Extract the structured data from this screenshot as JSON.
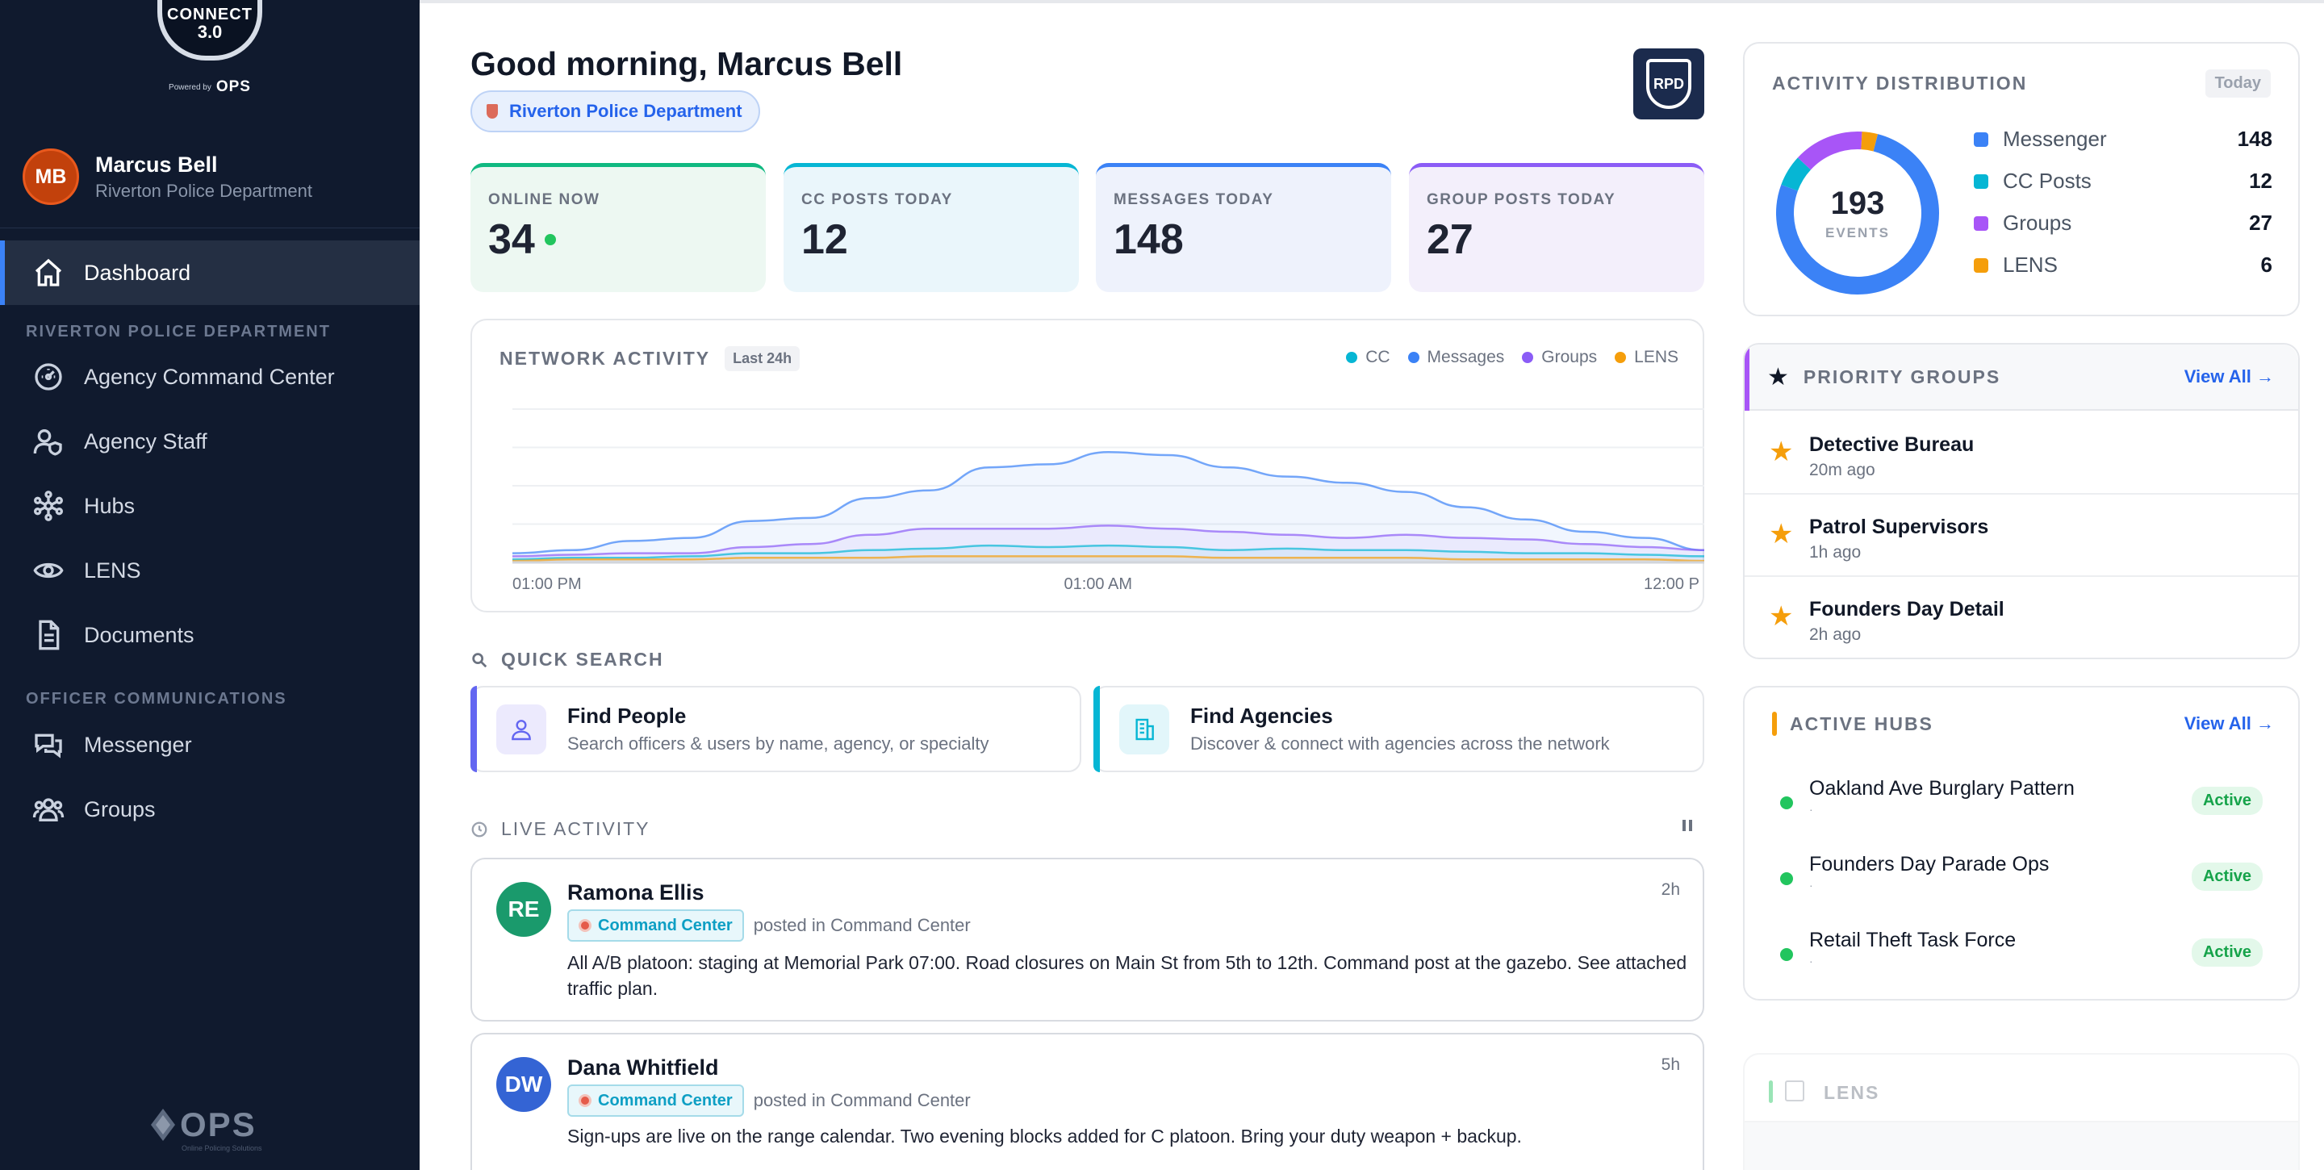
{
  "brand": {
    "logo_line1": "CONNECT",
    "logo_line2": "3.0",
    "powered_by": "Powered by",
    "ops": "OPS",
    "footer_ops": "OPS",
    "footer_tagline": "Online Policing Solutions"
  },
  "user": {
    "initials": "MB",
    "name": "Marcus Bell",
    "agency": "Riverton Police Department"
  },
  "nav": {
    "dashboard": "Dashboard",
    "section_agency": "RIVERTON POLICE DEPARTMENT",
    "agency_items": [
      {
        "label": "Agency Command Center",
        "icon": "gauge-icon"
      },
      {
        "label": "Agency Staff",
        "icon": "user-shield-icon"
      },
      {
        "label": "Hubs",
        "icon": "hub-network-icon"
      },
      {
        "label": "LENS",
        "icon": "eye-icon"
      },
      {
        "label": "Documents",
        "icon": "document-icon"
      }
    ],
    "section_comms": "OFFICER COMMUNICATIONS",
    "comms_items": [
      {
        "label": "Messenger",
        "icon": "chat-bubbles-icon"
      },
      {
        "label": "Groups",
        "icon": "users-icon"
      }
    ]
  },
  "header": {
    "greeting": "Good morning, Marcus Bell",
    "agency_pill": "Riverton Police Department",
    "agency_logo_text": "RPD"
  },
  "stats": [
    {
      "label": "ONLINE NOW",
      "value": "34",
      "color": "#10b981",
      "bg": "#edf8f2"
    },
    {
      "label": "CC POSTS TODAY",
      "value": "12",
      "color": "#06b6d4",
      "bg": "#eaf6fb"
    },
    {
      "label": "MESSAGES TODAY",
      "value": "148",
      "color": "#3b82f6",
      "bg": "#eef2fc"
    },
    {
      "label": "GROUP POSTS TODAY",
      "value": "27",
      "color": "#8b5cf6",
      "bg": "#f3effb"
    }
  ],
  "network": {
    "title": "NETWORK ACTIVITY",
    "range": "Last 24h",
    "legend": [
      {
        "name": "CC",
        "color": "#06b6d4"
      },
      {
        "name": "Messages",
        "color": "#3b82f6"
      },
      {
        "name": "Groups",
        "color": "#8b5cf6"
      },
      {
        "name": "LENS",
        "color": "#f59e0b"
      }
    ],
    "x_ticks": [
      "01:00 PM",
      "01:00 AM",
      "12:00 P"
    ]
  },
  "chart_data": {
    "type": "area",
    "title": "NETWORK ACTIVITY",
    "x_ticks": [
      "01:00 PM",
      "01:00 AM",
      "12:00 P"
    ],
    "ylim": [
      0,
      100
    ],
    "grid": true,
    "legend_position": "top-right",
    "series": [
      {
        "name": "Messages",
        "color": "#3b82f6",
        "values": [
          6,
          8,
          14,
          16,
          27,
          29,
          42,
          47,
          62,
          64,
          72,
          70,
          62,
          56,
          52,
          46,
          36,
          28,
          20,
          16,
          8
        ]
      },
      {
        "name": "Groups",
        "color": "#8b5cf6",
        "values": [
          4,
          5,
          6,
          6,
          10,
          12,
          18,
          22,
          22,
          22,
          24,
          22,
          20,
          18,
          16,
          18,
          16,
          15,
          12,
          10,
          8
        ]
      },
      {
        "name": "CC",
        "color": "#06b6d4",
        "values": [
          2,
          3,
          3,
          4,
          6,
          6,
          8,
          9,
          11,
          10,
          11,
          10,
          8,
          9,
          8,
          8,
          7,
          6,
          6,
          5,
          4
        ]
      },
      {
        "name": "LENS",
        "color": "#f59e0b",
        "values": [
          1,
          2,
          2,
          2,
          3,
          3,
          3,
          4,
          4,
          4,
          4,
          4,
          3,
          3,
          3,
          3,
          2,
          2,
          2,
          2,
          1
        ]
      }
    ]
  },
  "quick_search": {
    "title": "QUICK SEARCH",
    "people": {
      "title": "Find People",
      "sub": "Search officers & users by name, agency, or specialty"
    },
    "agencies": {
      "title": "Find Agencies",
      "sub": "Discover & connect with agencies across the network"
    }
  },
  "live": {
    "title": "LIVE ACTIVITY",
    "items": [
      {
        "initials": "RE",
        "name": "Ramona Ellis",
        "time": "2h",
        "tag": "Command Center",
        "posted_in": "posted in Command Center",
        "text": "All A/B platoon: staging at Memorial Park 07:00. Road closures on Main St from 5th to 12th. Command post at the gazebo. See attached traffic plan.",
        "color": "#1a9a6c"
      },
      {
        "initials": "DW",
        "name": "Dana Whitfield",
        "time": "5h",
        "tag": "Command Center",
        "posted_in": "posted in Command Center",
        "text": "Sign-ups are live on the range calendar. Two evening blocks added for C platoon. Bring your duty weapon + backup.",
        "color": "#3464d4"
      }
    ]
  },
  "distribution": {
    "title": "ACTIVITY DISTRIBUTION",
    "chip": "Today",
    "total": "193",
    "total_label": "EVENTS",
    "rows": [
      {
        "name": "Messenger",
        "value": 148,
        "color": "#3b82f6"
      },
      {
        "name": "CC Posts",
        "value": 12,
        "color": "#06b6d4"
      },
      {
        "name": "Groups",
        "value": 27,
        "color": "#a855f7"
      },
      {
        "name": "LENS",
        "value": 6,
        "color": "#f59e0b"
      }
    ]
  },
  "priority_groups": {
    "title": "PRIORITY GROUPS",
    "view_all": "View All →",
    "items": [
      {
        "name": "Detective Bureau",
        "time": "20m ago"
      },
      {
        "name": "Patrol Supervisors",
        "time": "1h ago"
      },
      {
        "name": "Founders Day Detail",
        "time": "2h ago"
      }
    ]
  },
  "hubs": {
    "title": "ACTIVE HUBS",
    "view_all": "View All →",
    "items": [
      {
        "name": "Oakland Ave Burglary Pattern",
        "sub": "·",
        "status": "Active"
      },
      {
        "name": "Founders Day Parade Ops",
        "sub": "·",
        "status": "Active"
      },
      {
        "name": "Retail Theft Task Force",
        "sub": "·",
        "status": "Active"
      }
    ]
  },
  "lens": {
    "title": "LENS"
  }
}
